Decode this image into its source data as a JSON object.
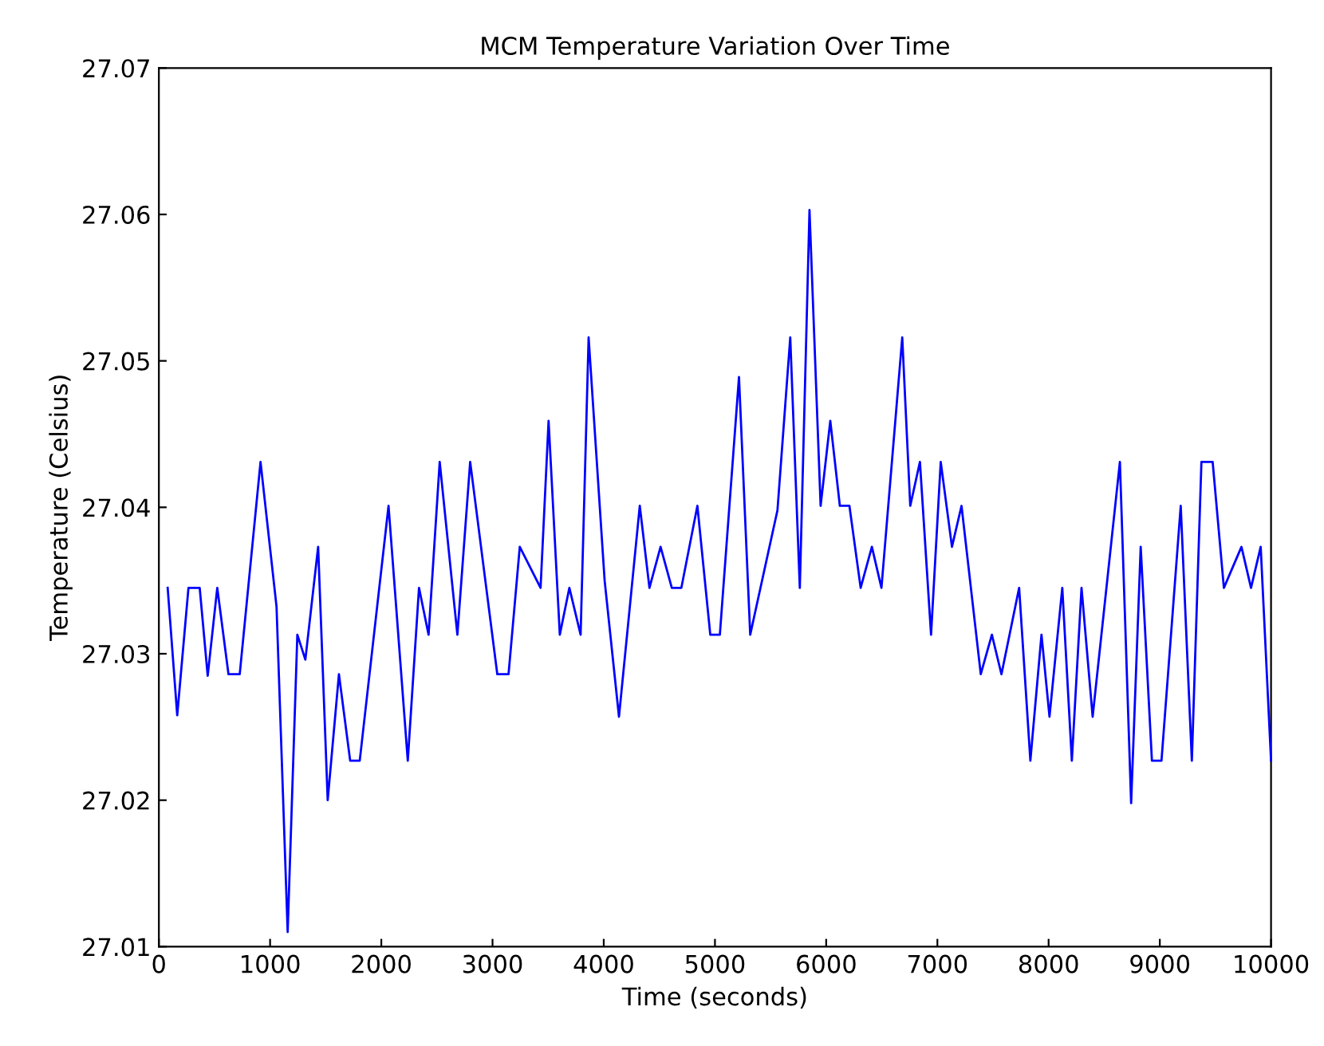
{
  "chart_data": {
    "type": "line",
    "title": "MCM Temperature Variation Over Time",
    "xlabel": "Time (seconds)",
    "ylabel": "Temperature (Celsius)",
    "xlim": [
      0,
      10000
    ],
    "xticks": [
      0,
      1000,
      2000,
      3000,
      4000,
      5000,
      6000,
      7000,
      8000,
      9000,
      10000
    ],
    "ylim": [
      27.01,
      27.07
    ],
    "yticks": [
      {
        "value": 27.01,
        "label": "27.01"
      },
      {
        "value": 27.02,
        "label": "27.02"
      },
      {
        "value": 27.03,
        "label": "27.03"
      },
      {
        "value": 27.04,
        "label": "27.04"
      },
      {
        "value": 27.05,
        "label": "27.05"
      },
      {
        "value": 27.06,
        "label": "27.06"
      },
      {
        "value": 27.07,
        "label": "27.07"
      }
    ],
    "grid": false,
    "marker": "none",
    "line_style": "solid",
    "series": [
      {
        "color": "#0000ff",
        "x": [
          79,
          165,
          266,
          367,
          439,
          525,
          626,
          727,
          914,
          1058,
          1158,
          1245,
          1317,
          1432,
          1518,
          1619,
          1720,
          1806,
          2065,
          2238,
          2339,
          2425,
          2525,
          2684,
          2799,
          3043,
          3144,
          3245,
          3432,
          3504,
          3605,
          3691,
          3792,
          3864,
          4008,
          4137,
          4324,
          4411,
          4511,
          4612,
          4698,
          4842,
          4958,
          5044,
          5216,
          5317,
          5562,
          5677,
          5763,
          5850,
          5950,
          6037,
          6123,
          6209,
          6310,
          6411,
          6497,
          6684,
          6756,
          6843,
          6943,
          7030,
          7131,
          7217,
          7390,
          7490,
          7576,
          7735,
          7836,
          7936,
          8008,
          8123,
          8209,
          8296,
          8396,
          8641,
          8742,
          8828,
          8929,
          9015,
          9188,
          9288,
          9374,
          9475,
          9576,
          9734,
          9820,
          9907,
          10000
        ],
        "values": [
          27.0345,
          27.0258,
          27.0345,
          27.0345,
          27.0285,
          27.0345,
          27.0286,
          27.0286,
          27.0431,
          27.0332,
          27.011,
          27.0313,
          27.0296,
          27.0373,
          27.02,
          27.0286,
          27.0227,
          27.0227,
          27.0401,
          27.0227,
          27.0345,
          27.0313,
          27.0431,
          27.0313,
          27.0431,
          27.0286,
          27.0286,
          27.0373,
          27.0345,
          27.0459,
          27.0313,
          27.0345,
          27.0313,
          27.0516,
          27.035,
          27.0257,
          27.0401,
          27.0345,
          27.0373,
          27.0345,
          27.0345,
          27.0401,
          27.0313,
          27.0313,
          27.0489,
          27.0313,
          27.0398,
          27.0516,
          27.0345,
          27.0603,
          27.0401,
          27.0459,
          27.0401,
          27.0401,
          27.0345,
          27.0373,
          27.0345,
          27.0516,
          27.0401,
          27.0431,
          27.0313,
          27.0431,
          27.0373,
          27.0401,
          27.0286,
          27.0313,
          27.0286,
          27.0345,
          27.0227,
          27.0313,
          27.0257,
          27.0345,
          27.0227,
          27.0345,
          27.0257,
          27.0431,
          27.0198,
          27.0373,
          27.0227,
          27.0227,
          27.0401,
          27.0227,
          27.0431,
          27.0431,
          27.0345,
          27.0373,
          27.0345,
          27.0373,
          27.0227
        ]
      }
    ]
  }
}
